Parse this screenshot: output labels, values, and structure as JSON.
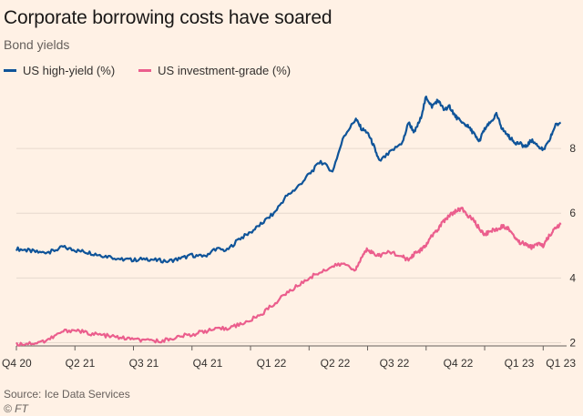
{
  "colors": {
    "background": "#fff1e5",
    "grid": "#e6d9ce",
    "high_yield": "#0f5499",
    "investment_grade": "#eb5e8d",
    "text": "#33302e"
  },
  "header": {
    "title": "Corporate borrowing costs have soared",
    "subtitle": "Bond yields"
  },
  "footer": {
    "source": "Source: Ice Data Services",
    "credit": "© FT"
  },
  "chart_data": {
    "type": "line",
    "title": "Corporate borrowing costs have soared",
    "subtitle": "Bond yields",
    "ylim": [
      1.9,
      10
    ],
    "xlim": [
      0,
      9.4
    ],
    "y_ticks": [
      2,
      4,
      6,
      8
    ],
    "y_tick_labels": [
      "2",
      "4",
      "6",
      "8"
    ],
    "x_ticks": [
      0,
      1,
      2,
      3,
      4,
      5,
      6,
      7,
      8,
      9
    ],
    "x_tick_labels": [
      "Q4 20",
      "Q2 21",
      "Q3 21",
      "Q4 21",
      "Q1 22",
      "Q2 22",
      "Q3 22",
      "Q4 22",
      "Q1 23",
      "Q1 23"
    ],
    "grid": true,
    "legend": "top-left",
    "series": [
      {
        "name": "US high-yield (%)",
        "color": "#0f5499",
        "x": [
          0,
          0.2,
          0.4,
          0.6,
          0.8,
          1.0,
          1.2,
          1.4,
          1.6,
          1.8,
          2.0,
          2.2,
          2.4,
          2.6,
          2.8,
          3.0,
          3.2,
          3.4,
          3.6,
          3.8,
          4.0,
          4.2,
          4.4,
          4.6,
          4.8,
          5.0,
          5.2,
          5.4,
          5.6,
          5.8,
          5.9,
          6.0,
          6.1,
          6.2,
          6.4,
          6.6,
          6.7,
          6.8,
          6.9,
          7.0,
          7.1,
          7.2,
          7.3,
          7.4,
          7.5,
          7.6,
          7.7,
          7.8,
          7.9,
          8.0,
          8.1,
          8.2,
          8.3,
          8.4,
          8.5,
          8.6,
          8.7,
          8.8,
          8.9,
          9.0,
          9.1,
          9.2,
          9.3
        ],
        "values": [
          4.9,
          4.85,
          4.78,
          4.82,
          4.95,
          4.85,
          4.8,
          4.72,
          4.65,
          4.58,
          4.55,
          4.6,
          4.55,
          4.52,
          4.6,
          4.7,
          4.65,
          4.9,
          4.85,
          5.2,
          5.4,
          5.7,
          6.0,
          6.5,
          6.8,
          7.2,
          7.6,
          7.3,
          8.4,
          8.9,
          8.6,
          8.5,
          8.1,
          7.6,
          7.9,
          8.2,
          8.8,
          8.5,
          8.9,
          9.6,
          9.3,
          9.5,
          9.2,
          9.3,
          9.0,
          8.8,
          8.7,
          8.5,
          8.2,
          8.6,
          8.8,
          9.05,
          8.6,
          8.4,
          8.2,
          8.15,
          8.05,
          8.25,
          8.1,
          7.95,
          8.2,
          8.7,
          8.8
        ]
      },
      {
        "name": "US investment-grade (%)",
        "color": "#eb5e8d",
        "x": [
          0,
          0.2,
          0.4,
          0.6,
          0.8,
          1.0,
          1.2,
          1.4,
          1.6,
          1.8,
          2.0,
          2.2,
          2.4,
          2.6,
          2.8,
          3.0,
          3.2,
          3.4,
          3.6,
          3.8,
          4.0,
          4.2,
          4.4,
          4.6,
          4.8,
          5.0,
          5.2,
          5.4,
          5.6,
          5.8,
          5.9,
          6.0,
          6.1,
          6.2,
          6.4,
          6.6,
          6.7,
          6.8,
          6.9,
          7.0,
          7.1,
          7.2,
          7.3,
          7.4,
          7.5,
          7.6,
          7.7,
          7.8,
          7.9,
          8.0,
          8.1,
          8.2,
          8.3,
          8.4,
          8.5,
          8.6,
          8.7,
          8.8,
          8.9,
          9.0,
          9.1,
          9.2,
          9.3
        ],
        "values": [
          1.95,
          1.98,
          2.0,
          2.15,
          2.35,
          2.4,
          2.3,
          2.25,
          2.2,
          2.15,
          2.1,
          2.05,
          2.05,
          2.1,
          2.2,
          2.25,
          2.35,
          2.4,
          2.45,
          2.55,
          2.7,
          2.9,
          3.2,
          3.5,
          3.75,
          4.0,
          4.2,
          4.35,
          4.45,
          4.25,
          4.65,
          4.9,
          4.75,
          4.7,
          4.8,
          4.65,
          4.55,
          4.75,
          4.85,
          5.0,
          5.3,
          5.5,
          5.75,
          5.95,
          6.05,
          6.15,
          5.95,
          5.8,
          5.55,
          5.35,
          5.45,
          5.5,
          5.6,
          5.55,
          5.3,
          5.1,
          5.05,
          4.95,
          5.05,
          5.0,
          5.3,
          5.5,
          5.65
        ]
      }
    ]
  }
}
